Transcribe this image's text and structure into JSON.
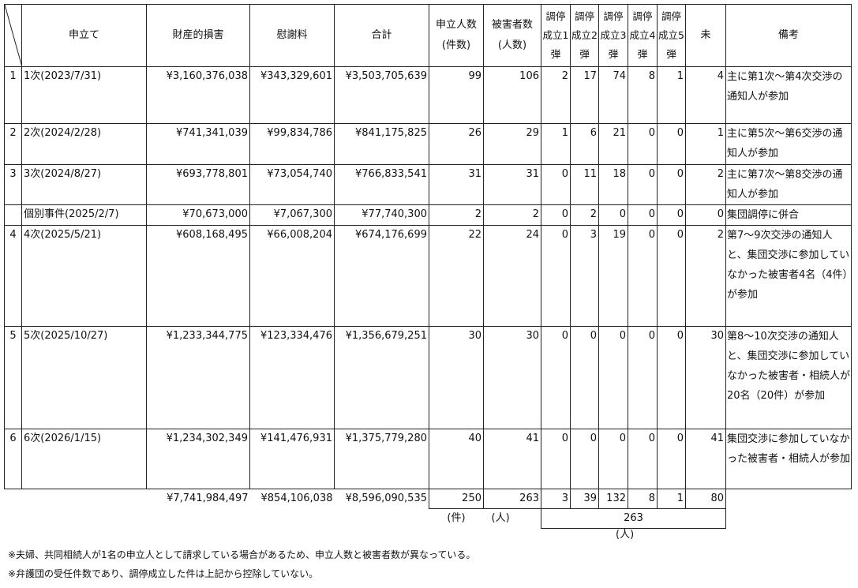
{
  "headers": {
    "application": "申立て",
    "property_damage": "財産的損害",
    "consolation": "慰謝料",
    "total": "合計",
    "applicants": "申立人数\n(件数)",
    "victims": "被害者数\n(人数)",
    "settle1": "調停成立1弾",
    "settle2": "調停成立2弾",
    "settle3": "調停成立3弾",
    "settle4": "調停成立4弾",
    "settle5": "調停成立5弾",
    "pending": "未",
    "remarks": "備考"
  },
  "rows": [
    {
      "no": "1",
      "application": "1次(2023/7/31)",
      "property_damage": "¥3,160,376,038",
      "consolation": "¥343,329,601",
      "total": "¥3,503,705,639",
      "applicants": "99",
      "victims": "106",
      "s1": "2",
      "s2": "17",
      "s3": "74",
      "s4": "8",
      "s5": "1",
      "pending": "4",
      "remarks": "主に第1次～第4次交渉の通知人が参加"
    },
    {
      "no": "2",
      "application": "2次(2024/2/28)",
      "property_damage": "¥741,341,039",
      "consolation": "¥99,834,786",
      "total": "¥841,175,825",
      "applicants": "26",
      "victims": "29",
      "s1": "1",
      "s2": "6",
      "s3": "21",
      "s4": "0",
      "s5": "0",
      "pending": "1",
      "remarks": "主に第5次～第6交渉の通知人が参加"
    },
    {
      "no": "3",
      "application": "3次(2024/8/27)",
      "property_damage": "¥693,778,801",
      "consolation": "¥73,054,740",
      "total": "¥766,833,541",
      "applicants": "31",
      "victims": "31",
      "s1": "0",
      "s2": "11",
      "s3": "18",
      "s4": "0",
      "s5": "0",
      "pending": "2",
      "remarks": "主に第7次～第8交渉の通知人が参加"
    },
    {
      "no": "",
      "application": "個別事件(2025/2/7)",
      "property_damage": "¥70,673,000",
      "consolation": "¥7,067,300",
      "total": "¥77,740,300",
      "applicants": "2",
      "victims": "2",
      "s1": "0",
      "s2": "2",
      "s3": "0",
      "s4": "0",
      "s5": "0",
      "pending": "0",
      "remarks": "集団調停に併合"
    },
    {
      "no": "4",
      "application": "4次(2025/5/21)",
      "property_damage": "¥608,168,495",
      "consolation": "¥66,008,204",
      "total": "¥674,176,699",
      "applicants": "22",
      "victims": "24",
      "s1": "0",
      "s2": "3",
      "s3": "19",
      "s4": "0",
      "s5": "0",
      "pending": "2",
      "remarks": "第7～9次交渉の通知人と、集団交渉に参加していなかった被害者4名（4件）が参加"
    },
    {
      "no": "5",
      "application": "5次(2025/10/27)",
      "property_damage": "¥1,233,344,775",
      "consolation": "¥123,334,476",
      "total": "¥1,356,679,251",
      "applicants": "30",
      "victims": "30",
      "s1": "0",
      "s2": "0",
      "s3": "0",
      "s4": "0",
      "s5": "0",
      "pending": "30",
      "remarks": "第8～10次交渉の通知人と、集団交渉に参加していなかった被害者・相続人が20名（20件）が参加"
    },
    {
      "no": "6",
      "application": "6次(2026/1/15)",
      "property_damage": "¥1,234,302,349",
      "consolation": "¥141,476,931",
      "total": "¥1,375,779,280",
      "applicants": "40",
      "victims": "41",
      "s1": "0",
      "s2": "0",
      "s3": "0",
      "s4": "0",
      "s5": "0",
      "pending": "41",
      "remarks": "集団交渉に参加していなかった被害者・相続人が参加"
    }
  ],
  "totals": {
    "property_damage": "¥7,741,984,497",
    "consolation": "¥854,106,038",
    "total": "¥8,596,090,535",
    "applicants": "250",
    "victims": "263",
    "s1": "3",
    "s2": "39",
    "s3": "132",
    "s4": "8",
    "s5": "1",
    "pending": "80"
  },
  "units": {
    "applicants": "(件)",
    "victims": "(人)",
    "grand_total": "263",
    "grand_total_unit": "(人)"
  },
  "footnotes": [
    "※夫婦、共同相続人が1名の申立人として請求している場合があるため、申立人数と被害者数が異なっている。",
    "※弁護団の受任件数であり、調停成立した件は上記から控除していない。"
  ]
}
